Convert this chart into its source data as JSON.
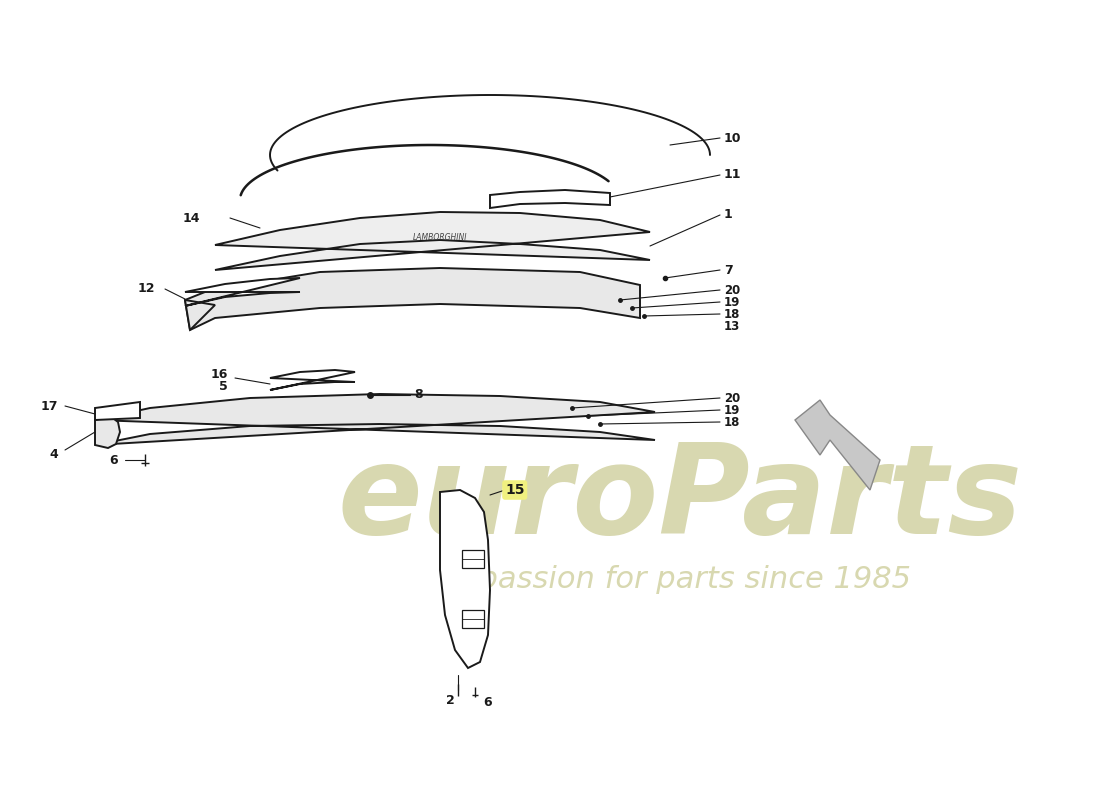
{
  "bg_color": "#ffffff",
  "line_color": "#1a1a1a",
  "wm1": "euroParts",
  "wm2": "a passion for parts since 1985",
  "wm_color": "#d8d8b0",
  "figw": 11.0,
  "figh": 8.0
}
